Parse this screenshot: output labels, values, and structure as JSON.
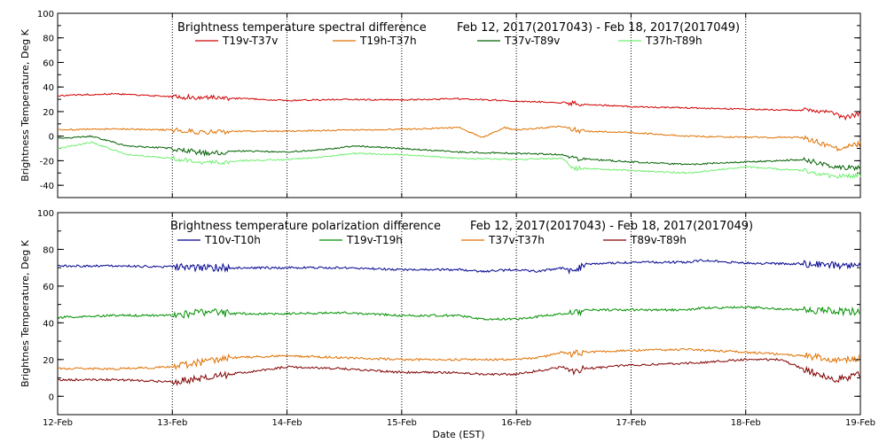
{
  "chart_data": [
    {
      "type": "line",
      "title": "Brightness temperature spectral difference",
      "date_range": "Feb 12, 2017(2017043) - Feb 18, 2017(2017049)",
      "ylabel": "Brightness Temperature, Deg K",
      "xlabel": "",
      "ylim": [
        -50,
        100
      ],
      "yticks": [
        "-40",
        "-20",
        "0",
        "20",
        "40",
        "60",
        "80",
        "100"
      ],
      "xlim": [
        0,
        7
      ],
      "x_units": "days since 12-Feb",
      "grid": "vertical dotted at each day",
      "series": [
        {
          "name": "T19v-T37v",
          "color": "#d00000",
          "points": [
            [
              0,
              33
            ],
            [
              0.5,
              34.5
            ],
            [
              1,
              32
            ],
            [
              1.5,
              31
            ],
            [
              2,
              29
            ],
            [
              2.5,
              30
            ],
            [
              3,
              29.5
            ],
            [
              3.5,
              30.5
            ],
            [
              4,
              28.5
            ],
            [
              4.5,
              27
            ],
            [
              4.55,
              26
            ],
            [
              5,
              24
            ],
            [
              5.5,
              23
            ],
            [
              6,
              22
            ],
            [
              6.5,
              21
            ],
            [
              6.75,
              20.5
            ],
            [
              6.85,
              15
            ],
            [
              7,
              18
            ]
          ]
        },
        {
          "name": "T19h-T37h",
          "color": "#e07000",
          "points": [
            [
              0,
              5
            ],
            [
              0.5,
              6
            ],
            [
              1,
              5
            ],
            [
              1.3,
              3
            ],
            [
              1.5,
              4
            ],
            [
              2,
              4
            ],
            [
              2.5,
              5
            ],
            [
              3,
              5.5
            ],
            [
              3.5,
              7
            ],
            [
              3.7,
              -1
            ],
            [
              3.9,
              7
            ],
            [
              4,
              5
            ],
            [
              4.4,
              8
            ],
            [
              4.55,
              4
            ],
            [
              5,
              3
            ],
            [
              5.5,
              0
            ],
            [
              6,
              -1
            ],
            [
              6.5,
              -1
            ],
            [
              6.8,
              -10
            ],
            [
              7,
              -6
            ]
          ]
        },
        {
          "name": "T37v-T89v",
          "color": "#006000",
          "points": [
            [
              0,
              -2
            ],
            [
              0.3,
              0
            ],
            [
              0.6,
              -8
            ],
            [
              1,
              -10
            ],
            [
              1.3,
              -14
            ],
            [
              1.6,
              -12
            ],
            [
              2,
              -13
            ],
            [
              2.3,
              -11
            ],
            [
              2.6,
              -8
            ],
            [
              3,
              -10
            ],
            [
              3.5,
              -13
            ],
            [
              4,
              -14
            ],
            [
              4.4,
              -15
            ],
            [
              4.5,
              -18
            ],
            [
              5,
              -21
            ],
            [
              5.5,
              -23
            ],
            [
              6,
              -21
            ],
            [
              6.5,
              -19
            ],
            [
              6.8,
              -25
            ],
            [
              7,
              -26
            ]
          ]
        },
        {
          "name": "T37h-T89h",
          "color": "#70ee70",
          "points": [
            [
              0,
              -10
            ],
            [
              0.3,
              -5
            ],
            [
              0.6,
              -15
            ],
            [
              1,
              -18
            ],
            [
              1.3,
              -22
            ],
            [
              1.6,
              -20
            ],
            [
              2,
              -19
            ],
            [
              2.3,
              -17
            ],
            [
              2.6,
              -14
            ],
            [
              3,
              -15
            ],
            [
              3.5,
              -18
            ],
            [
              4,
              -19
            ],
            [
              4.4,
              -18
            ],
            [
              4.5,
              -26
            ],
            [
              5,
              -28
            ],
            [
              5.5,
              -30
            ],
            [
              6,
              -25
            ],
            [
              6.5,
              -28
            ],
            [
              6.8,
              -33
            ],
            [
              7,
              -32
            ]
          ]
        }
      ]
    },
    {
      "type": "line",
      "title": "Brightness temperature polarization difference",
      "date_range": "Feb 12, 2017(2017043) - Feb 18, 2017(2017049)",
      "ylabel": "Brightnes Temperature, Deg K",
      "xlabel": "Date (EST)",
      "ylim": [
        -10,
        100
      ],
      "yticks": [
        "0",
        "20",
        "40",
        "60",
        "80",
        "100"
      ],
      "xlim": [
        0,
        7
      ],
      "x_units": "days since 12-Feb",
      "xticks": [
        "12-Feb",
        "13-Feb",
        "14-Feb",
        "15-Feb",
        "16-Feb",
        "17-Feb",
        "18-Feb",
        "19-Feb"
      ],
      "grid": "vertical dotted at each day",
      "series": [
        {
          "name": "T10v-T10h",
          "color": "#000090",
          "points": [
            [
              0,
              71
            ],
            [
              0.5,
              71
            ],
            [
              1,
              70.5
            ],
            [
              1.3,
              70
            ],
            [
              1.5,
              70
            ],
            [
              2,
              70
            ],
            [
              2.5,
              70
            ],
            [
              3,
              69
            ],
            [
              3.5,
              69
            ],
            [
              3.7,
              68
            ],
            [
              4,
              69
            ],
            [
              4.2,
              68
            ],
            [
              4.4,
              70
            ],
            [
              4.5,
              68
            ],
            [
              4.6,
              72
            ],
            [
              5,
              73
            ],
            [
              5.5,
              73
            ],
            [
              5.6,
              74
            ],
            [
              6,
              72.5
            ],
            [
              6.5,
              72
            ],
            [
              7,
              71
            ]
          ]
        },
        {
          "name": "T19v-T19h",
          "color": "#009000",
          "points": [
            [
              0,
              43
            ],
            [
              0.5,
              44
            ],
            [
              1,
              44
            ],
            [
              1.3,
              46
            ],
            [
              1.5,
              45
            ],
            [
              2,
              45
            ],
            [
              2.5,
              45.5
            ],
            [
              3,
              44
            ],
            [
              3.5,
              44
            ],
            [
              3.7,
              42
            ],
            [
              4,
              42
            ],
            [
              4.4,
              45
            ],
            [
              4.5,
              45
            ],
            [
              4.6,
              47
            ],
            [
              5,
              47
            ],
            [
              5.5,
              47
            ],
            [
              5.6,
              48
            ],
            [
              6,
              48.5
            ],
            [
              6.5,
              47
            ],
            [
              7,
              46
            ]
          ]
        },
        {
          "name": "T37v-T37h",
          "color": "#e07000",
          "points": [
            [
              0,
              15
            ],
            [
              0.5,
              15
            ],
            [
              1,
              16
            ],
            [
              1.3,
              19
            ],
            [
              1.5,
              21
            ],
            [
              2,
              22
            ],
            [
              2.5,
              21
            ],
            [
              3,
              20
            ],
            [
              3.5,
              20
            ],
            [
              3.7,
              20
            ],
            [
              4,
              20
            ],
            [
              4.2,
              21
            ],
            [
              4.4,
              24
            ],
            [
              4.5,
              23
            ],
            [
              4.6,
              24
            ],
            [
              5,
              25
            ],
            [
              5.5,
              25.5
            ],
            [
              6,
              24
            ],
            [
              6.5,
              22
            ],
            [
              6.8,
              20
            ],
            [
              7,
              21
            ]
          ]
        },
        {
          "name": "T89v-T89h",
          "color": "#800000",
          "points": [
            [
              0,
              9
            ],
            [
              0.5,
              9
            ],
            [
              1,
              8
            ],
            [
              1.3,
              10
            ],
            [
              1.5,
              12
            ],
            [
              2,
              16
            ],
            [
              2.5,
              15
            ],
            [
              3,
              13
            ],
            [
              3.5,
              13
            ],
            [
              3.7,
              12
            ],
            [
              4,
              12
            ],
            [
              4.2,
              14
            ],
            [
              4.4,
              16
            ],
            [
              4.5,
              14
            ],
            [
              4.6,
              15
            ],
            [
              5,
              17
            ],
            [
              5.5,
              18
            ],
            [
              6,
              20
            ],
            [
              6.3,
              20
            ],
            [
              6.5,
              15
            ],
            [
              6.8,
              9
            ],
            [
              7,
              12
            ]
          ]
        }
      ]
    }
  ]
}
